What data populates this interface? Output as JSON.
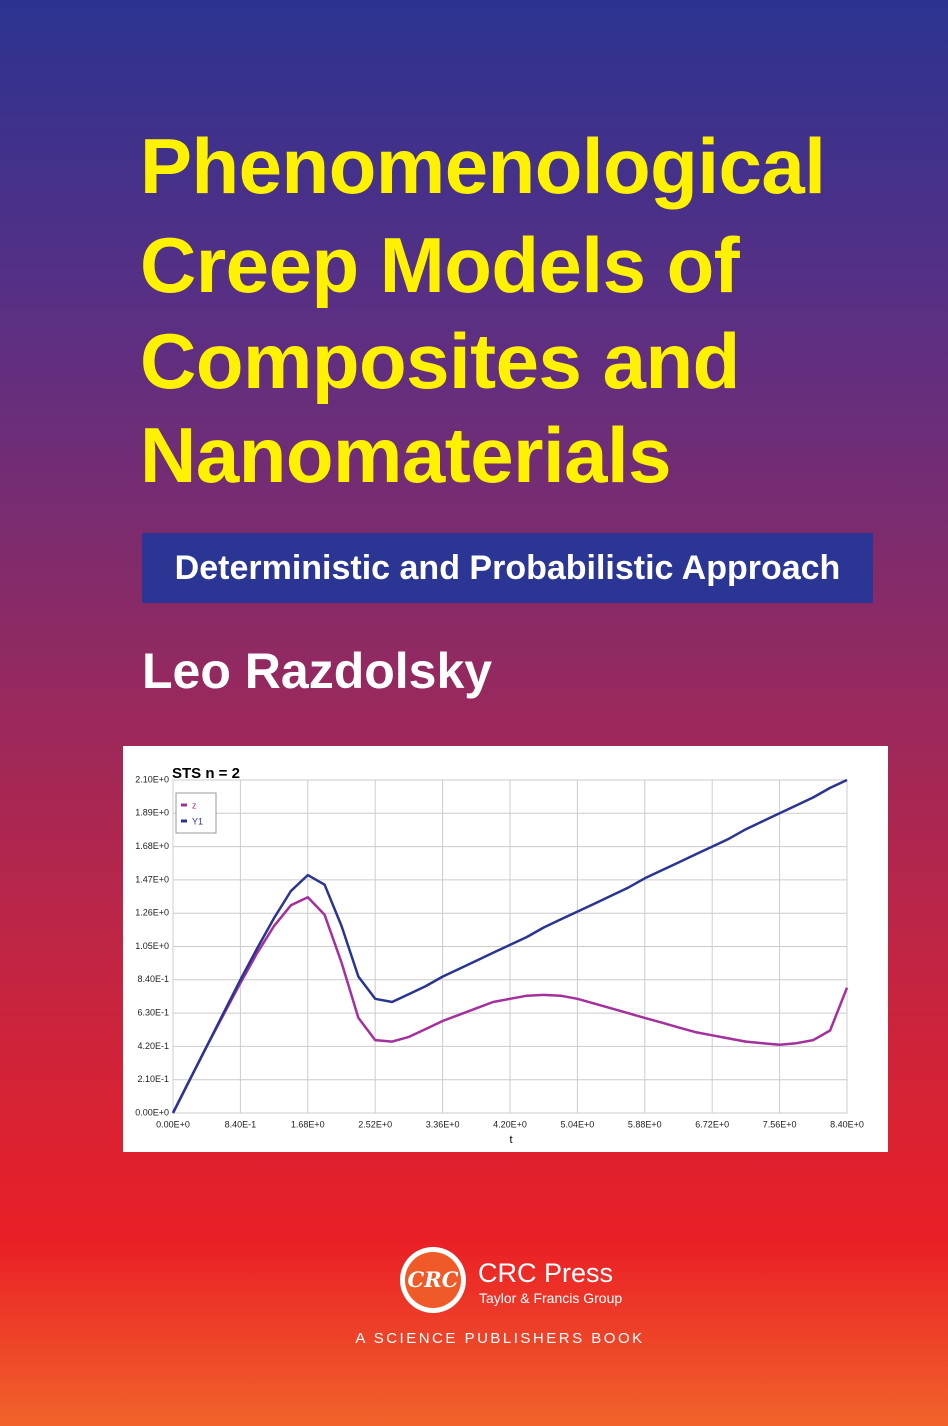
{
  "cover": {
    "title_lines": [
      "Phenomenological",
      "Creep Models of",
      "Composites and",
      "Nanomaterials"
    ],
    "subtitle": "Deterministic and Probabilistic Approach",
    "author": "Leo Razdolsky",
    "publisher": {
      "logo": "CRC",
      "name": "CRC Press",
      "group": "Taylor & Francis Group",
      "imprint": "A SCIENCE PUBLISHERS BOOK"
    }
  },
  "chart_data": {
    "type": "line",
    "title": "STS n = 2",
    "x_label": "t",
    "x": [
      0,
      0.21,
      0.42,
      0.63,
      0.84,
      1.05,
      1.26,
      1.47,
      1.68,
      1.89,
      2.1,
      2.31,
      2.52,
      2.73,
      2.94,
      3.15,
      3.36,
      3.57,
      3.78,
      3.99,
      4.2,
      4.41,
      4.62,
      4.83,
      5.04,
      5.25,
      5.46,
      5.67,
      5.88,
      6.09,
      6.3,
      6.51,
      6.72,
      6.93,
      7.14,
      7.35,
      7.56,
      7.77,
      7.98,
      8.19,
      8.4
    ],
    "series": [
      {
        "name": "z",
        "color": "#a3309c",
        "values": [
          0,
          0.21,
          0.42,
          0.62,
          0.82,
          1.01,
          1.18,
          1.31,
          1.36,
          1.25,
          0.95,
          0.6,
          0.46,
          0.45,
          0.48,
          0.53,
          0.58,
          0.62,
          0.66,
          0.7,
          0.72,
          0.74,
          0.745,
          0.74,
          0.72,
          0.69,
          0.66,
          0.63,
          0.6,
          0.57,
          0.54,
          0.51,
          0.49,
          0.47,
          0.45,
          0.44,
          0.43,
          0.44,
          0.46,
          0.52,
          0.79
        ]
      },
      {
        "name": "Y1",
        "color": "#2a3591",
        "values": [
          0,
          0.21,
          0.42,
          0.63,
          0.84,
          1.04,
          1.23,
          1.4,
          1.5,
          1.44,
          1.18,
          0.86,
          0.72,
          0.7,
          0.75,
          0.8,
          0.86,
          0.91,
          0.96,
          1.01,
          1.06,
          1.11,
          1.17,
          1.22,
          1.27,
          1.32,
          1.37,
          1.42,
          1.48,
          1.53,
          1.58,
          1.63,
          1.68,
          1.73,
          1.79,
          1.84,
          1.89,
          1.94,
          1.99,
          2.05,
          2.1
        ]
      }
    ],
    "xlim": [
      0,
      8.4
    ],
    "xticks": [
      {
        "value": 0,
        "label": "0.00E+0"
      },
      {
        "value": 0.84,
        "label": "8.40E-1"
      },
      {
        "value": 1.68,
        "label": "1.68E+0"
      },
      {
        "value": 2.52,
        "label": "2.52E+0"
      },
      {
        "value": 3.36,
        "label": "3.36E+0"
      },
      {
        "value": 4.2,
        "label": "4.20E+0"
      },
      {
        "value": 5.04,
        "label": "5.04E+0"
      },
      {
        "value": 5.88,
        "label": "5.88E+0"
      },
      {
        "value": 6.72,
        "label": "6.72E+0"
      },
      {
        "value": 7.56,
        "label": "7.56E+0"
      },
      {
        "value": 8.4,
        "label": "8.40E+0"
      }
    ],
    "ylim": [
      0,
      2.1
    ],
    "yticks": [
      {
        "value": 0,
        "label": "0.00E+0"
      },
      {
        "value": 0.21,
        "label": "2.10E-1"
      },
      {
        "value": 0.42,
        "label": "4.20E-1"
      },
      {
        "value": 0.63,
        "label": "6.30E-1"
      },
      {
        "value": 0.84,
        "label": "8.40E-1"
      },
      {
        "value": 1.05,
        "label": "1.05E+0"
      },
      {
        "value": 1.26,
        "label": "1.26E+0"
      },
      {
        "value": 1.47,
        "label": "1.47E+0"
      },
      {
        "value": 1.68,
        "label": "1.68E+0"
      },
      {
        "value": 1.89,
        "label": "1.89E+0"
      },
      {
        "value": 2.1,
        "label": "2.10E+0"
      }
    ],
    "grid": true,
    "legend": "top-left"
  }
}
